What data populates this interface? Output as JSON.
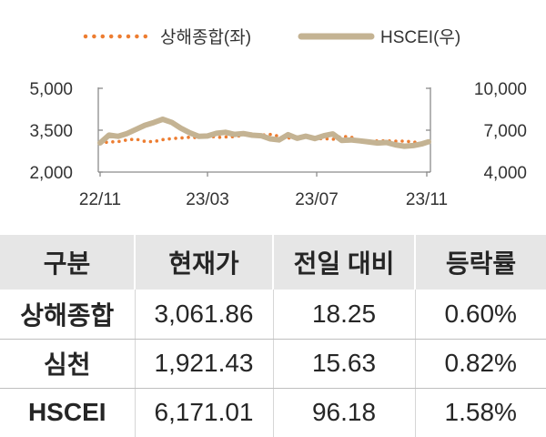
{
  "chart_data": {
    "type": "line",
    "legend_position": "top",
    "grid": false,
    "x": [
      "2022-11-01",
      "2022-11-11",
      "2022-11-21",
      "2022-12-01",
      "2022-12-11",
      "2022-12-21",
      "2022-12-31",
      "2023-01-10",
      "2023-01-20",
      "2023-01-30",
      "2023-02-09",
      "2023-02-19",
      "2023-03-01",
      "2023-03-11",
      "2023-03-21",
      "2023-03-31",
      "2023-04-10",
      "2023-04-20",
      "2023-04-30",
      "2023-05-10",
      "2023-05-20",
      "2023-05-30",
      "2023-06-09",
      "2023-06-19",
      "2023-06-29",
      "2023-07-09",
      "2023-07-19",
      "2023-07-29",
      "2023-08-08",
      "2023-08-18",
      "2023-08-28",
      "2023-09-07",
      "2023-09-17",
      "2023-09-27",
      "2023-10-07",
      "2023-10-17",
      "2023-10-27",
      "2023-11-03"
    ],
    "x_ticks": [
      "22/11",
      "23/03",
      "23/07",
      "23/11"
    ],
    "y_left": {
      "ticks": [
        "5,000",
        "3,500",
        "2,000"
      ],
      "range": [
        2000,
        5000
      ]
    },
    "y_right": {
      "ticks": [
        "10,000",
        "7,000",
        "4,000"
      ],
      "range": [
        4000,
        10000
      ]
    },
    "series": [
      {
        "name": "상해종합(좌)",
        "axis": "left",
        "color": "#ED7D31",
        "line_style": "dotted",
        "values": [
          3040,
          3080,
          3090,
          3150,
          3180,
          3100,
          3090,
          3160,
          3200,
          3220,
          3250,
          3230,
          3310,
          3240,
          3260,
          3270,
          3320,
          3370,
          3320,
          3350,
          3280,
          3220,
          3230,
          3250,
          3190,
          3200,
          3170,
          3280,
          3260,
          3130,
          3100,
          3120,
          3120,
          3110,
          3110,
          3080,
          3020,
          3061.86
        ]
      },
      {
        "name": "HSCEI(우)",
        "axis": "right",
        "color": "#C4B393",
        "line_style": "solid",
        "values": [
          6090,
          6650,
          6560,
          6760,
          7050,
          7350,
          7550,
          7780,
          7560,
          7150,
          6820,
          6560,
          6580,
          6780,
          6850,
          6700,
          6760,
          6640,
          6600,
          6380,
          6300,
          6680,
          6420,
          6570,
          6400,
          6600,
          6730,
          6260,
          6300,
          6240,
          6160,
          6080,
          6120,
          5950,
          5850,
          5900,
          6030,
          6171.01
        ]
      }
    ]
  },
  "table": {
    "header_bg": "#E6E6E6",
    "headers": [
      "구분",
      "현재가",
      "전일 대비",
      "등락률"
    ],
    "rows": [
      [
        "상해종합",
        "3,061.86",
        "18.25",
        "0.60%"
      ],
      [
        "심천",
        "1,921.43",
        "15.63",
        "0.82%"
      ],
      [
        "HSCEI",
        "6,171.01",
        "96.18",
        "1.58%"
      ]
    ]
  }
}
